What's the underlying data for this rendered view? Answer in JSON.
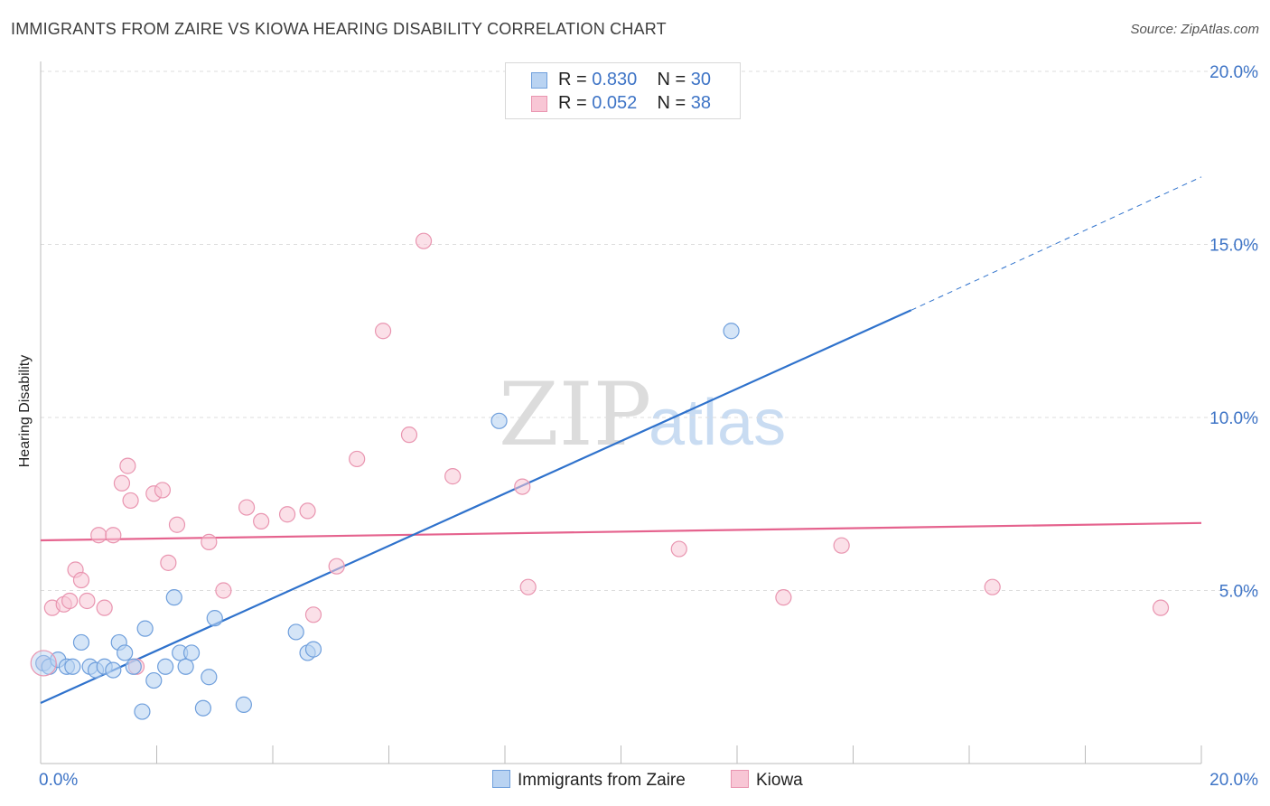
{
  "title": "IMMIGRANTS FROM ZAIRE VS KIOWA HEARING DISABILITY CORRELATION CHART",
  "source": "Source: ZipAtlas.com",
  "watermark": {
    "zip": "ZIP",
    "atlas": "atlas"
  },
  "colors": {
    "blue_fill": "#b9d3f2",
    "blue_stroke": "#6f9fdc",
    "blue_line": "#2f72cc",
    "pink_fill": "#f8c6d5",
    "pink_stroke": "#e995b0",
    "pink_line": "#e5638e",
    "tick_text": "#3e74c6",
    "grid": "#dddddd"
  },
  "legend": {
    "rows": [
      {
        "r_label": "R = ",
        "r_value": "0.830",
        "n_label": "N = ",
        "n_value": "30",
        "series": "blue"
      },
      {
        "r_label": "R = ",
        "r_value": "0.052",
        "n_label": "N = ",
        "n_value": "38",
        "series": "pink"
      }
    ]
  },
  "bottom_legend": [
    "Immigrants from Zaire",
    "Kiowa"
  ],
  "chart_data": {
    "type": "scatter",
    "title": "IMMIGRANTS FROM ZAIRE VS KIOWA HEARING DISABILITY CORRELATION CHART",
    "xlabel": "",
    "ylabel": "Hearing Disability",
    "xlim": [
      0,
      20
    ],
    "ylim": [
      0,
      20
    ],
    "x_tick_labels": [
      "0.0%",
      "20.0%"
    ],
    "y_ticks": [
      5,
      10,
      15,
      20
    ],
    "y_tick_labels": [
      "5.0%",
      "10.0%",
      "15.0%",
      "20.0%"
    ],
    "grid": true,
    "legend_position": "top-center",
    "series": [
      {
        "name": "Immigrants from Zaire",
        "color": "#b9d3f2",
        "r": 0.83,
        "n": 30,
        "points": [
          [
            0.05,
            2.9
          ],
          [
            0.15,
            2.8
          ],
          [
            0.3,
            3.0
          ],
          [
            0.45,
            2.8
          ],
          [
            0.55,
            2.8
          ],
          [
            0.7,
            3.5
          ],
          [
            0.85,
            2.8
          ],
          [
            0.95,
            2.7
          ],
          [
            1.1,
            2.8
          ],
          [
            1.25,
            2.7
          ],
          [
            1.35,
            3.5
          ],
          [
            1.45,
            3.2
          ],
          [
            1.6,
            2.8
          ],
          [
            1.75,
            1.5
          ],
          [
            1.8,
            3.9
          ],
          [
            1.95,
            2.4
          ],
          [
            2.15,
            2.8
          ],
          [
            2.3,
            4.8
          ],
          [
            2.4,
            3.2
          ],
          [
            2.5,
            2.8
          ],
          [
            2.6,
            3.2
          ],
          [
            2.8,
            1.6
          ],
          [
            2.9,
            2.5
          ],
          [
            3.0,
            4.2
          ],
          [
            3.5,
            1.7
          ],
          [
            4.4,
            3.8
          ],
          [
            4.6,
            3.2
          ],
          [
            4.7,
            3.3
          ],
          [
            7.9,
            9.9
          ],
          [
            11.9,
            12.5
          ]
        ],
        "trend": {
          "x": [
            0,
            15
          ],
          "y": [
            1.75,
            13.1
          ],
          "extend_dashed_to": [
            20,
            16.95
          ]
        }
      },
      {
        "name": "Kiowa",
        "color": "#f8c6d5",
        "r": 0.052,
        "n": 38,
        "points": [
          [
            0.05,
            2.9
          ],
          [
            0.2,
            4.5
          ],
          [
            0.4,
            4.6
          ],
          [
            0.5,
            4.7
          ],
          [
            0.6,
            5.6
          ],
          [
            0.7,
            5.3
          ],
          [
            0.8,
            4.7
          ],
          [
            1.0,
            6.6
          ],
          [
            1.1,
            4.5
          ],
          [
            1.25,
            6.6
          ],
          [
            1.4,
            8.1
          ],
          [
            1.5,
            8.6
          ],
          [
            1.55,
            7.6
          ],
          [
            1.65,
            2.8
          ],
          [
            1.95,
            7.8
          ],
          [
            2.1,
            7.9
          ],
          [
            2.2,
            5.8
          ],
          [
            2.35,
            6.9
          ],
          [
            2.9,
            6.4
          ],
          [
            3.15,
            5.0
          ],
          [
            3.55,
            7.4
          ],
          [
            3.8,
            7.0
          ],
          [
            4.25,
            7.2
          ],
          [
            4.6,
            7.3
          ],
          [
            4.7,
            4.3
          ],
          [
            5.1,
            5.7
          ],
          [
            5.45,
            8.8
          ],
          [
            5.9,
            12.5
          ],
          [
            6.35,
            9.5
          ],
          [
            6.6,
            15.1
          ],
          [
            7.1,
            8.3
          ],
          [
            8.3,
            8.0
          ],
          [
            8.4,
            5.1
          ],
          [
            11.0,
            6.2
          ],
          [
            12.8,
            4.8
          ],
          [
            13.8,
            6.3
          ],
          [
            16.4,
            5.1
          ],
          [
            19.3,
            4.5
          ]
        ],
        "trend": {
          "x": [
            0,
            20
          ],
          "y": [
            6.45,
            6.95
          ]
        }
      }
    ]
  }
}
